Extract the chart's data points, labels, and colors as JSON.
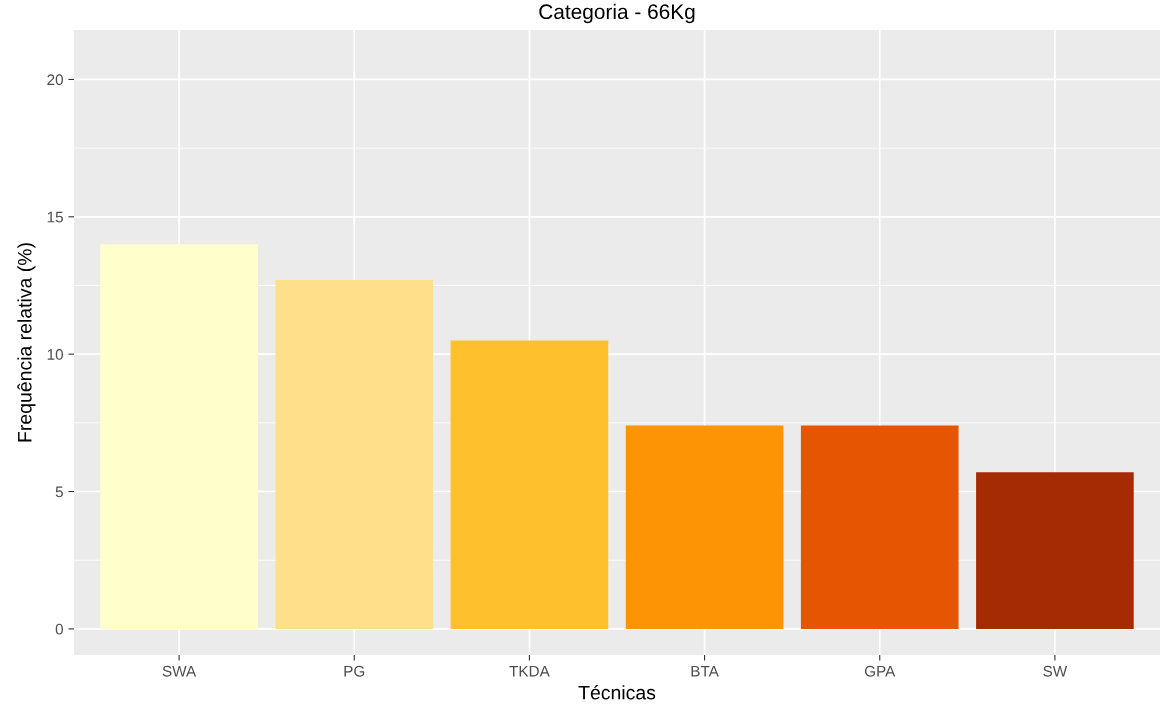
{
  "chart_data": {
    "type": "bar",
    "title": "Categoria - 66Kg",
    "xlabel": "Técnicas",
    "ylabel": "Frequência relativa (%)",
    "categories": [
      "SWA",
      "PG",
      "TKDA",
      "BTA",
      "GPA",
      "SW"
    ],
    "values": [
      14.0,
      12.7,
      10.5,
      7.4,
      7.4,
      5.7
    ],
    "colors": [
      "#ffffcc",
      "#fee08b",
      "#fec12d",
      "#fd9406",
      "#e65602",
      "#a52b03"
    ],
    "ylim": [
      -0.95,
      21.8
    ],
    "yticks": [
      0,
      5,
      10,
      15,
      20
    ],
    "grid": true
  }
}
